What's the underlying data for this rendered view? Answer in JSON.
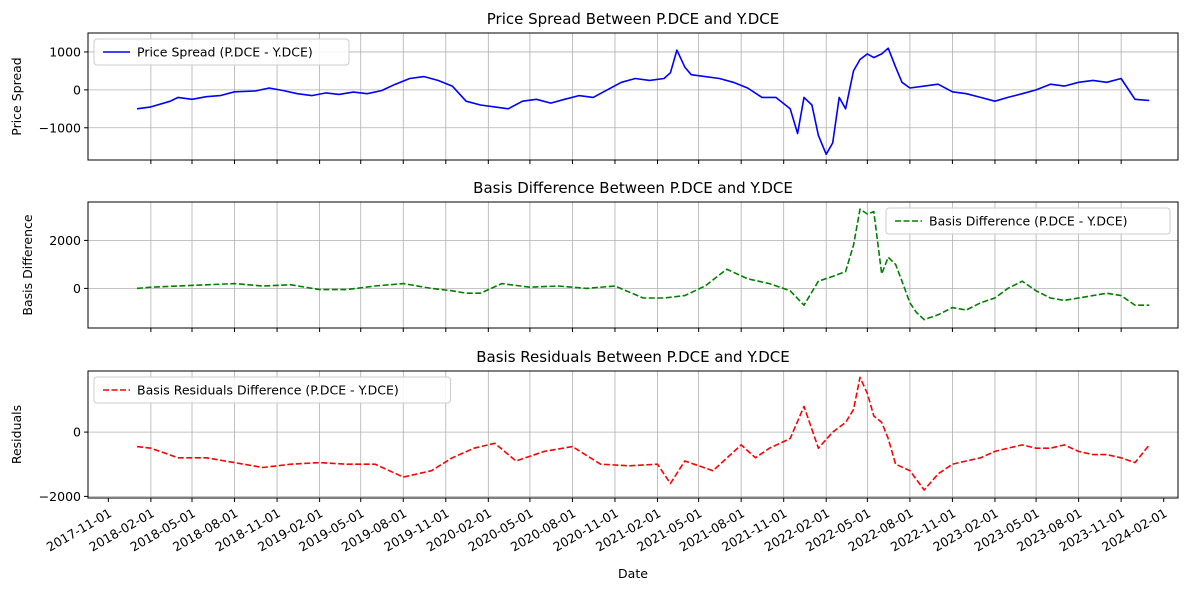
{
  "chart_data": [
    {
      "type": "line",
      "title": "Price Spread Between P.DCE and Y.DCE",
      "ylabel": "Price Spread",
      "xlabel": "",
      "ylim": [
        -1850,
        1500
      ],
      "yticks": [
        -1000,
        0,
        1000
      ],
      "grid": true,
      "legend": "upper-left",
      "series": [
        {
          "name": "Price Spread (P.DCE - Y.DCE)",
          "color": "#0000ff",
          "dash": "solid",
          "x": [
            "2018-01-02",
            "2018-02-01",
            "2018-03-15",
            "2018-04-01",
            "2018-05-01",
            "2018-06-01",
            "2018-07-01",
            "2018-08-01",
            "2018-09-15",
            "2018-10-15",
            "2018-11-15",
            "2018-12-15",
            "2019-01-15",
            "2019-02-15",
            "2019-03-15",
            "2019-04-15",
            "2019-05-15",
            "2019-06-15",
            "2019-07-15",
            "2019-08-15",
            "2019-09-15",
            "2019-10-15",
            "2019-11-15",
            "2019-12-15",
            "2020-01-15",
            "2020-02-15",
            "2020-03-15",
            "2020-04-15",
            "2020-05-15",
            "2020-06-15",
            "2020-07-15",
            "2020-08-15",
            "2020-09-15",
            "2020-10-15",
            "2020-11-15",
            "2020-12-15",
            "2021-01-15",
            "2021-02-15",
            "2021-03-01",
            "2021-03-15",
            "2021-04-01",
            "2021-04-15",
            "2021-05-15",
            "2021-06-15",
            "2021-07-15",
            "2021-08-15",
            "2021-09-15",
            "2021-10-15",
            "2021-11-15",
            "2021-12-01",
            "2021-12-15",
            "2022-01-01",
            "2022-01-15",
            "2022-02-01",
            "2022-02-15",
            "2022-03-01",
            "2022-03-15",
            "2022-04-01",
            "2022-04-15",
            "2022-05-01",
            "2022-05-15",
            "2022-06-01",
            "2022-06-15",
            "2022-07-01",
            "2022-07-15",
            "2022-08-01",
            "2022-09-01",
            "2022-10-01",
            "2022-11-01",
            "2022-12-01",
            "2023-01-01",
            "2023-02-01",
            "2023-03-01",
            "2023-04-01",
            "2023-05-01",
            "2023-06-01",
            "2023-07-01",
            "2023-08-01",
            "2023-09-01",
            "2023-10-01",
            "2023-11-01",
            "2023-12-01",
            "2024-01-01"
          ],
          "values": [
            -500,
            -450,
            -300,
            -200,
            -250,
            -180,
            -150,
            -50,
            -30,
            50,
            -20,
            -100,
            -150,
            -80,
            -120,
            -60,
            -100,
            -20,
            150,
            300,
            350,
            250,
            100,
            -300,
            -400,
            -450,
            -500,
            -300,
            -250,
            -350,
            -250,
            -150,
            -200,
            0,
            200,
            300,
            250,
            300,
            450,
            1050,
            600,
            400,
            350,
            300,
            200,
            50,
            -200,
            -200,
            -500,
            -1150,
            -200,
            -400,
            -1200,
            -1700,
            -1400,
            -200,
            -500,
            500,
            800,
            950,
            850,
            950,
            1100,
            600,
            200,
            50,
            100,
            150,
            -50,
            -100,
            -200,
            -300,
            -200,
            -100,
            0,
            150,
            100,
            200,
            250,
            200,
            300,
            -250,
            -280
          ]
        }
      ]
    },
    {
      "type": "line",
      "title": "Basis Difference Between P.DCE and Y.DCE",
      "ylabel": "Basis Difference",
      "xlabel": "",
      "ylim": [
        -1650,
        3600
      ],
      "yticks": [
        0,
        2000
      ],
      "grid": true,
      "legend": "upper-right",
      "series": [
        {
          "name": "Basis Difference (P.DCE - Y.DCE)",
          "color": "#008000",
          "dash": "dashed",
          "x": [
            "2018-01-02",
            "2018-02-01",
            "2018-04-01",
            "2018-06-01",
            "2018-08-01",
            "2018-10-01",
            "2018-12-01",
            "2019-02-01",
            "2019-04-01",
            "2019-06-01",
            "2019-08-01",
            "2019-10-01",
            "2019-11-15",
            "2019-12-15",
            "2020-01-15",
            "2020-03-01",
            "2020-05-01",
            "2020-07-01",
            "2020-09-01",
            "2020-11-01",
            "2021-01-01",
            "2021-02-15",
            "2021-04-01",
            "2021-05-15",
            "2021-07-01",
            "2021-08-15",
            "2021-10-01",
            "2021-11-15",
            "2021-12-15",
            "2022-01-15",
            "2022-02-15",
            "2022-03-15",
            "2022-04-01",
            "2022-04-15",
            "2022-05-01",
            "2022-05-15",
            "2022-06-01",
            "2022-06-15",
            "2022-07-01",
            "2022-07-15",
            "2022-08-01",
            "2022-08-15",
            "2022-09-01",
            "2022-10-01",
            "2022-11-01",
            "2022-12-01",
            "2023-01-01",
            "2023-02-01",
            "2023-03-01",
            "2023-04-01",
            "2023-05-01",
            "2023-06-01",
            "2023-07-01",
            "2023-08-01",
            "2023-09-01",
            "2023-10-01",
            "2023-11-01",
            "2023-12-01",
            "2024-01-01"
          ],
          "values": [
            0,
            50,
            100,
            150,
            200,
            100,
            150,
            -50,
            -50,
            100,
            200,
            0,
            -100,
            -200,
            -200,
            200,
            50,
            100,
            0,
            100,
            -400,
            -400,
            -300,
            100,
            800,
            400,
            200,
            -100,
            -700,
            300,
            500,
            700,
            1800,
            3300,
            3100,
            3200,
            600,
            1300,
            1000,
            300,
            -600,
            -1000,
            -1300,
            -1100,
            -800,
            -900,
            -600,
            -400,
            0,
            300,
            -100,
            -400,
            -500,
            -400,
            -300,
            -200,
            -300,
            -700,
            -700
          ]
        }
      ]
    },
    {
      "type": "line",
      "title": "Basis Residuals Between P.DCE and Y.DCE",
      "ylabel": "Residuals",
      "xlabel": "Date",
      "ylim": [
        -2050,
        1900
      ],
      "yticks": [
        -2000,
        0
      ],
      "grid": true,
      "legend": "upper-left",
      "xtick_labels": [
        "2017-11-01",
        "2018-02-01",
        "2018-05-01",
        "2018-08-01",
        "2018-11-01",
        "2019-02-01",
        "2019-05-01",
        "2019-08-01",
        "2019-11-01",
        "2020-02-01",
        "2020-05-01",
        "2020-08-01",
        "2020-11-01",
        "2021-02-01",
        "2021-05-01",
        "2021-08-01",
        "2021-11-01",
        "2022-02-01",
        "2022-05-01",
        "2022-08-01",
        "2022-11-01",
        "2023-02-01",
        "2023-05-01",
        "2023-08-01",
        "2023-11-01",
        "2024-02-01"
      ],
      "series": [
        {
          "name": "Basis Residuals Difference (P.DCE - Y.DCE)",
          "color": "#ff0000",
          "dash": "dashed",
          "x": [
            "2018-01-02",
            "2018-02-01",
            "2018-04-01",
            "2018-06-01",
            "2018-08-01",
            "2018-10-01",
            "2018-12-01",
            "2019-02-01",
            "2019-04-01",
            "2019-06-01",
            "2019-08-01",
            "2019-10-01",
            "2019-11-15",
            "2020-01-01",
            "2020-02-15",
            "2020-04-01",
            "2020-06-01",
            "2020-08-01",
            "2020-10-01",
            "2020-12-01",
            "2021-02-01",
            "2021-03-01",
            "2021-04-01",
            "2021-06-01",
            "2021-08-01",
            "2021-09-01",
            "2021-10-01",
            "2021-11-15",
            "2021-12-15",
            "2022-01-15",
            "2022-02-15",
            "2022-03-15",
            "2022-04-01",
            "2022-04-15",
            "2022-05-01",
            "2022-05-15",
            "2022-06-01",
            "2022-06-15",
            "2022-07-01",
            "2022-08-01",
            "2022-09-01",
            "2022-10-01",
            "2022-11-01",
            "2022-12-01",
            "2023-01-01",
            "2023-02-01",
            "2023-03-01",
            "2023-04-01",
            "2023-05-01",
            "2023-06-01",
            "2023-07-01",
            "2023-08-01",
            "2023-09-01",
            "2023-10-01",
            "2023-11-01",
            "2023-12-01",
            "2024-01-01"
          ],
          "values": [
            -450,
            -500,
            -800,
            -800,
            -950,
            -1100,
            -1000,
            -950,
            -1000,
            -1000,
            -1400,
            -1200,
            -800,
            -500,
            -350,
            -900,
            -600,
            -450,
            -1000,
            -1050,
            -1000,
            -1600,
            -900,
            -1200,
            -400,
            -800,
            -500,
            -200,
            800,
            -500,
            0,
            300,
            700,
            1700,
            1200,
            500,
            300,
            -200,
            -1000,
            -1200,
            -1800,
            -1300,
            -1000,
            -900,
            -800,
            -600,
            -500,
            -400,
            -500,
            -500,
            -400,
            -600,
            -700,
            -700,
            -800,
            -950,
            -400
          ]
        }
      ]
    }
  ]
}
